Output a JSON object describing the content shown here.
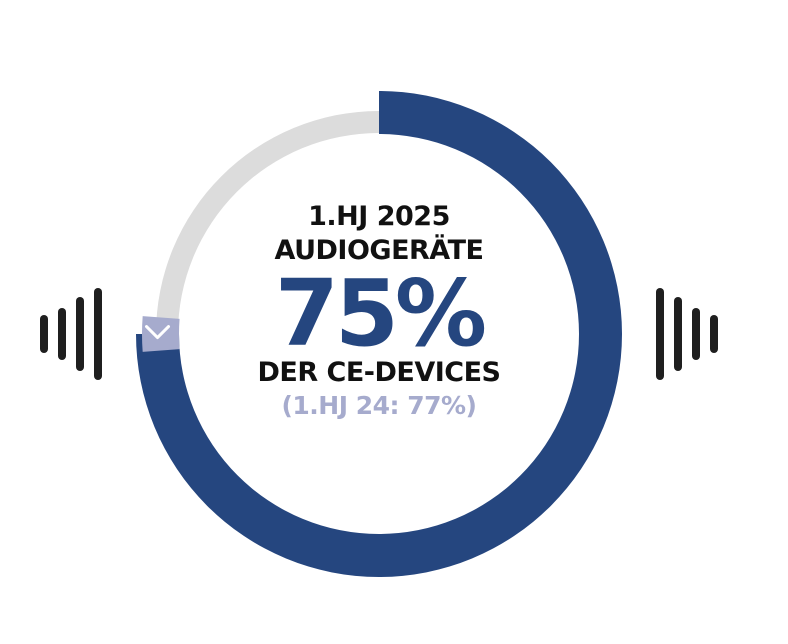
{
  "chart_data": {
    "type": "pie",
    "variant": "donut",
    "period": "1.HJ 2025",
    "subject": "AUDIOGERÄTE",
    "value_label": "75%",
    "unit": "DER CE-DEVICES",
    "comparison": "(1.HJ 24: 77%)",
    "value": 75,
    "previous_value": 77,
    "total": 100
  },
  "colors": {
    "value_fill": "#25467f",
    "remainder": "#dcdcdc",
    "previous_marker": "#a6abcd",
    "sound_bars": "#1f1f1f"
  },
  "icons": {
    "marker": "chevron-down-icon",
    "left": "sound-wave-left-icon",
    "right": "sound-wave-right-icon"
  }
}
